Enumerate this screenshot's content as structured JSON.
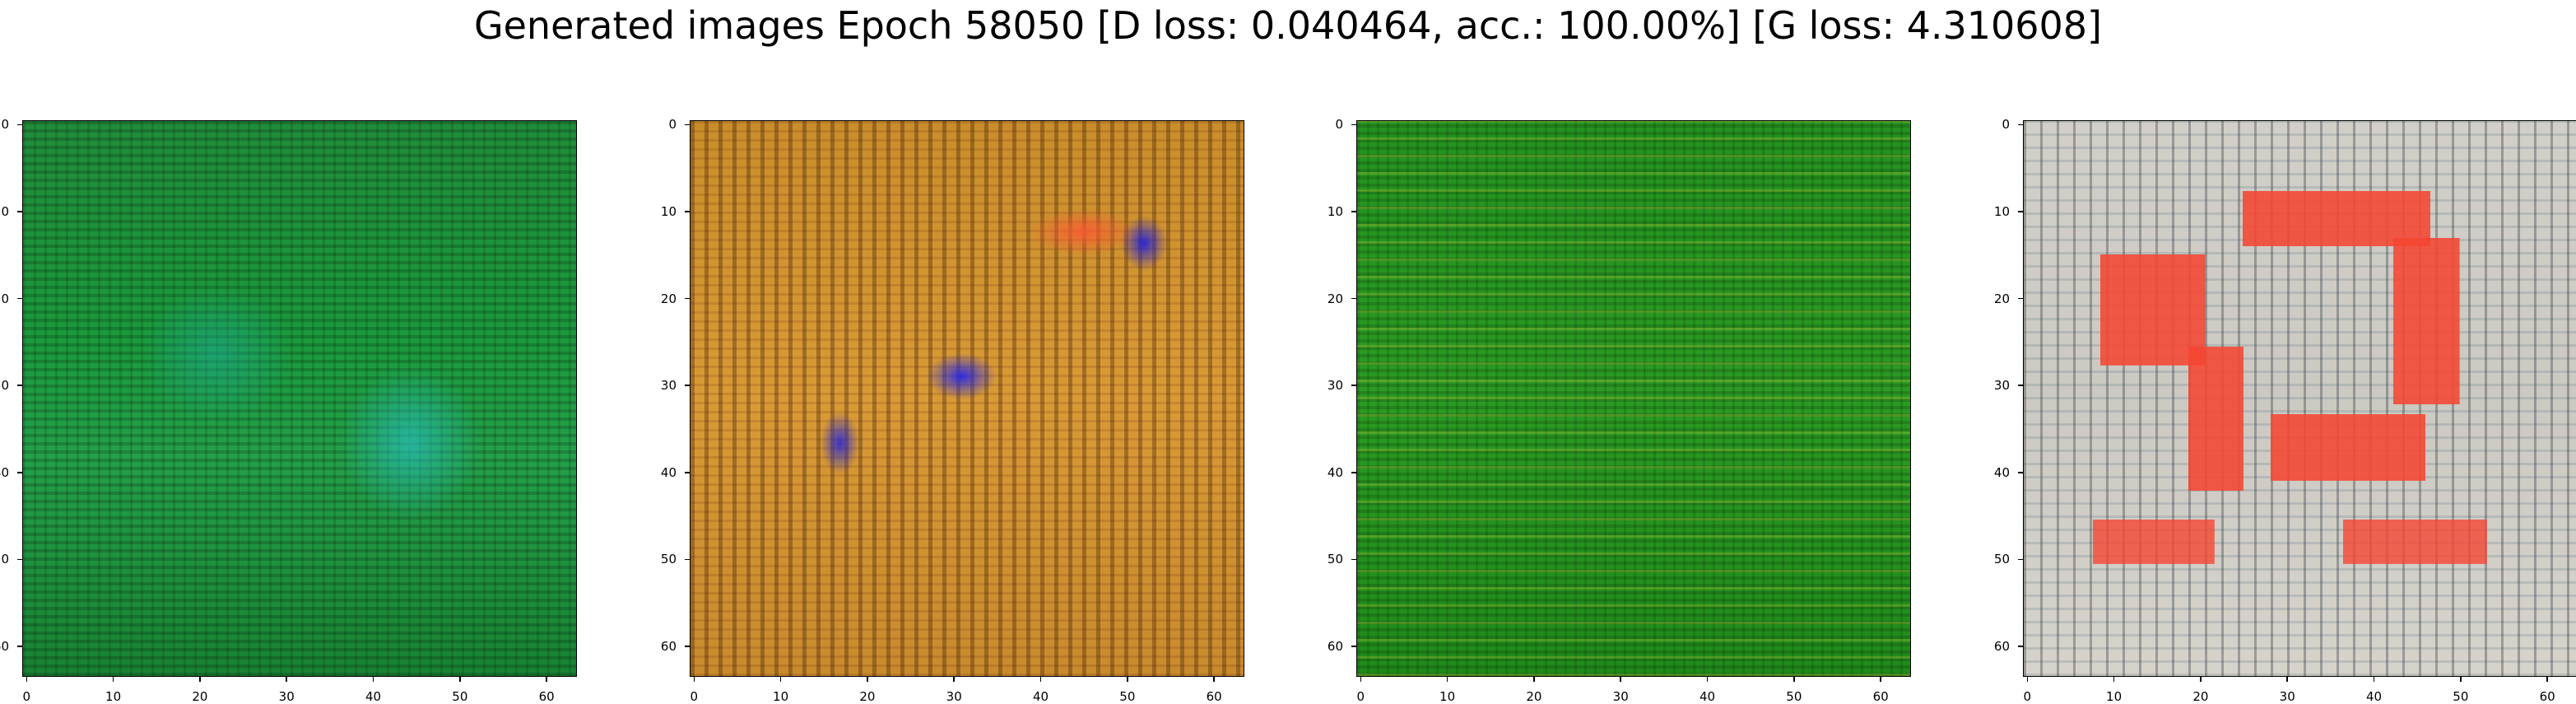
{
  "figure": {
    "title": "Generated images Epoch 58050 [D loss: 0.040464, acc.: 100.00%] [G loss: 4.310608]"
  },
  "axes": {
    "x_ticks": [
      "0",
      "10",
      "20",
      "30",
      "40",
      "50",
      "60"
    ],
    "y_ticks": [
      "0",
      "10",
      "20",
      "30",
      "40",
      "50",
      "60"
    ],
    "pixel_range": [
      0,
      63
    ]
  },
  "panels": [
    {
      "id": "sample-1",
      "dominant_colors": [
        "#1a9a3c",
        "#28bebe",
        "#0b3a14"
      ]
    },
    {
      "id": "sample-2",
      "dominant_colors": [
        "#d99a35",
        "#f55a32",
        "#2828e6"
      ]
    },
    {
      "id": "sample-3",
      "dominant_colors": [
        "#2a9a22",
        "#c8c83c",
        "#0a3c0a"
      ]
    },
    {
      "id": "sample-4",
      "dominant_colors": [
        "#d2cfc8",
        "#f54632",
        "#28323c"
      ]
    }
  ]
}
